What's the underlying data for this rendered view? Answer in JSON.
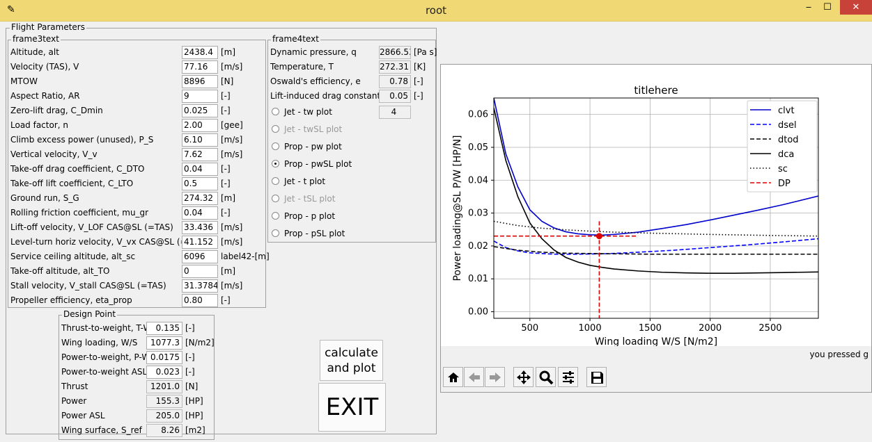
{
  "window": {
    "title": "root",
    "minimize": "‒",
    "maximize": "☐",
    "close": "✕"
  },
  "flight_frame": {
    "legend": "Flight Parameters"
  },
  "frame3": {
    "legend": "frame3text",
    "rows": [
      {
        "label": "Altitude, alt",
        "value": "2438.4",
        "unit": "[m]"
      },
      {
        "label": "Velocity (TAS), V",
        "value": "77.16",
        "unit": "[m/s]"
      },
      {
        "label": "MTOW",
        "value": "8896",
        "unit": "[N]"
      },
      {
        "label": "Aspect Ratio, AR",
        "value": "9",
        "unit": "[-]"
      },
      {
        "label": "Zero-lift drag, C_Dmin",
        "value": "0.025",
        "unit": "[-]"
      },
      {
        "label": "Load factor, n",
        "value": "2.00",
        "unit": "[gee]"
      },
      {
        "label": "Climb excess power (unused), P_S",
        "value": "6.10",
        "unit": "[m/s]"
      },
      {
        "label": "Vertical velocity, V_v",
        "value": "7.62",
        "unit": "[m/s]"
      },
      {
        "label": "Take-off drag coefficient, C_DTO",
        "value": "0.04",
        "unit": "[-]"
      },
      {
        "label": "Take-off lift coefficient, C_LTO",
        "value": "0.5",
        "unit": "[-]"
      },
      {
        "label": "Ground run, S_G",
        "value": "274.32",
        "unit": "[m]"
      },
      {
        "label": "Rolling friction coefficient, mu_gr",
        "value": "0.04",
        "unit": "[-]"
      },
      {
        "label": "Lift-off velocity, V_LOF CAS@SL (=TAS)",
        "value": "33.436",
        "unit": "[m/s]"
      },
      {
        "label": "Level-turn horiz velocity, V_vx CAS@SL (=TAS)",
        "value": "41.152",
        "unit": "[m/s]"
      },
      {
        "label": "Service ceiling altitude, alt_sc",
        "value": "6096",
        "unit": "label42-[m]"
      },
      {
        "label": "Take-off altitude, alt_TO",
        "value": "0",
        "unit": "[m]"
      },
      {
        "label": "Stall velocity, V_stall CAS@SL (=TAS)",
        "value": "31.3784",
        "unit": "[m/s]"
      },
      {
        "label": "Propeller efficiency, eta_prop",
        "value": "0.80",
        "unit": "[-]"
      }
    ]
  },
  "frame4": {
    "legend": "frame4text",
    "rows": [
      {
        "label": "Dynamic pressure, q",
        "value": "2866.53",
        "unit": "[Pa s]"
      },
      {
        "label": "Temperature, T",
        "value": "272.31",
        "unit": "[K]"
      },
      {
        "label": "Oswald's efficiency, e",
        "value": "0.78",
        "unit": "[-]"
      },
      {
        "label": "Lift-induced drag constant, k",
        "value": "0.05",
        "unit": "[-]"
      }
    ],
    "radios": [
      {
        "label": "Jet - tw plot",
        "enabled": true,
        "selected": false
      },
      {
        "label": "Jet - twSL plot",
        "enabled": false,
        "selected": false
      },
      {
        "label": "Prop - pw plot",
        "enabled": true,
        "selected": false
      },
      {
        "label": "Prop - pwSL plot",
        "enabled": true,
        "selected": true
      },
      {
        "label": "Jet - t plot",
        "enabled": true,
        "selected": false
      },
      {
        "label": "Jet - tSL plot",
        "enabled": false,
        "selected": false
      },
      {
        "label": "Prop - p plot",
        "enabled": true,
        "selected": false
      },
      {
        "label": "Prop - pSL plot",
        "enabled": true,
        "selected": false
      }
    ],
    "plot_option_value": "4"
  },
  "design_point": {
    "legend": "Design Point",
    "rows": [
      {
        "label": "Thrust-to-weight, T-W",
        "value": "0.135",
        "unit": "[-]",
        "editable": true
      },
      {
        "label": "Wing loading, W/S",
        "value": "1077.3",
        "unit": "[N/m2]",
        "editable": true
      },
      {
        "label": "Power-to-weight, P-W",
        "value": "0.0175",
        "unit": "[-]",
        "editable": true
      },
      {
        "label": "Power-to-weight ASL",
        "value": "0.023",
        "unit": "[-]",
        "editable": true
      },
      {
        "label": "Thrust",
        "value": "1201.0",
        "unit": "[N]",
        "editable": false
      },
      {
        "label": "Power",
        "value": "155.3",
        "unit": "[HP]",
        "editable": false
      },
      {
        "label": "Power ASL",
        "value": "205.0",
        "unit": "[HP]",
        "editable": false
      },
      {
        "label": "Wing surface, S_ref",
        "value": "8.26",
        "unit": "[m2]",
        "editable": false
      }
    ]
  },
  "buttons": {
    "calc_line1": "calculate",
    "calc_line2": "and plot",
    "exit": "EXIT"
  },
  "status": "you pressed g",
  "toolbar": [
    "home-icon",
    "back-icon",
    "forward-icon",
    "pan-icon",
    "zoom-icon",
    "configure-icon",
    "save-icon"
  ],
  "colors": {
    "titlebar": "#f0d874",
    "close": "#c7433a",
    "clvt": "#0000cc",
    "dsel": "#0000ff",
    "dtod": "#000000",
    "dca": "#000000",
    "sc": "#000000",
    "DP": "#dd0000"
  },
  "chart_data": {
    "type": "line",
    "title": "titlehere",
    "xlabel": "Wing loading W/S [N/m2]",
    "ylabel": "Power loading@SL P/W [HP/N]",
    "xlim": [
      200,
      2900
    ],
    "ylim": [
      -0.002,
      0.065
    ],
    "xticks": [
      500,
      1000,
      1500,
      2000,
      2500
    ],
    "yticks": [
      0.0,
      0.01,
      0.02,
      0.03,
      0.04,
      0.05,
      0.06
    ],
    "grid": true,
    "legend_position": "top-right",
    "series": [
      {
        "name": "clvt",
        "style": "solid",
        "x": [
          200,
          300,
          400,
          500,
          600,
          700,
          800,
          900,
          1000,
          1100,
          1200,
          1400,
          1600,
          1800,
          2000,
          2200,
          2400,
          2600,
          2900
        ],
        "y": [
          0.065,
          0.048,
          0.038,
          0.031,
          0.0275,
          0.0255,
          0.0243,
          0.0237,
          0.0234,
          0.0233,
          0.0235,
          0.0242,
          0.0253,
          0.0265,
          0.0279,
          0.0294,
          0.0309,
          0.0325,
          0.0352
        ]
      },
      {
        "name": "dsel",
        "style": "dashed",
        "x": [
          200,
          300,
          400,
          500,
          700,
          900,
          1100,
          1300,
          1500,
          1700,
          2000,
          2300,
          2600,
          2900
        ],
        "y": [
          0.0215,
          0.0195,
          0.0185,
          0.0179,
          0.0175,
          0.0175,
          0.0176,
          0.0179,
          0.0183,
          0.0187,
          0.0195,
          0.0203,
          0.0212,
          0.0222
        ]
      },
      {
        "name": "dtod",
        "style": "dashed",
        "x": [
          200,
          400,
          600,
          800,
          1000,
          1500,
          2000,
          2500,
          2900
        ],
        "y": [
          0.0198,
          0.0187,
          0.0181,
          0.0178,
          0.0177,
          0.0175,
          0.0175,
          0.0175,
          0.0175
        ]
      },
      {
        "name": "dca",
        "style": "solid",
        "x": [
          200,
          300,
          400,
          500,
          600,
          700,
          800,
          900,
          1000,
          1100,
          1200,
          1400,
          1600,
          1800,
          2000,
          2200,
          2400,
          2600,
          2900
        ],
        "y": [
          0.062,
          0.046,
          0.035,
          0.027,
          0.0222,
          0.0188,
          0.0165,
          0.0151,
          0.0141,
          0.0135,
          0.013,
          0.0124,
          0.012,
          0.0118,
          0.0117,
          0.0117,
          0.0118,
          0.0119,
          0.0121
        ]
      },
      {
        "name": "sc",
        "style": "dotted",
        "x": [
          200,
          400,
          600,
          800,
          1000,
          1200,
          1500,
          2000,
          2500,
          2900
        ],
        "y": [
          0.0275,
          0.0262,
          0.0254,
          0.0249,
          0.0245,
          0.0242,
          0.0239,
          0.0235,
          0.0232,
          0.023
        ]
      },
      {
        "name": "DP",
        "style": "dashed",
        "x": [
          1077.3
        ],
        "y": [
          0.023
        ]
      }
    ]
  }
}
